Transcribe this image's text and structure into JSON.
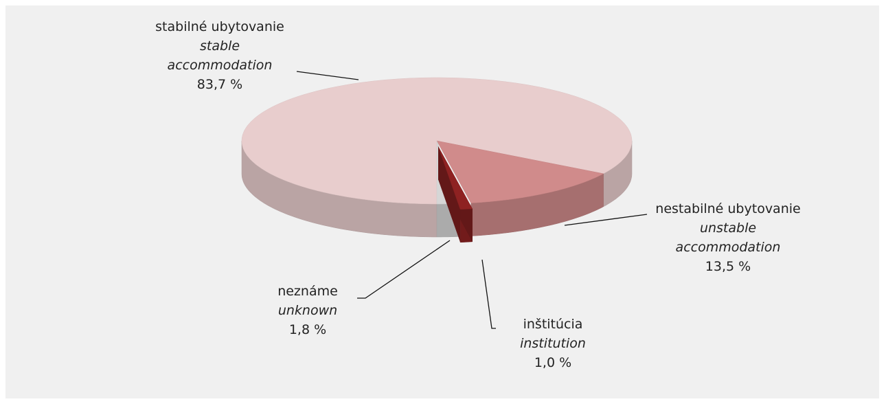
{
  "chart_data": {
    "type": "pie",
    "categories": [
      "stabilné ubytovanie",
      "nestabilné ubytovanie",
      "inštitúcia",
      "neznáme"
    ],
    "categories_en": [
      "stable accommodation",
      "unstable accommodation",
      "institution",
      "unknown"
    ],
    "values": [
      83.7,
      13.5,
      1.0,
      1.8
    ],
    "value_labels": [
      "83,7 %",
      "13,5 %",
      "1,0 %",
      "1,8 %"
    ],
    "colors": [
      "#e8cdcd",
      "#d08b8b",
      "#8e2222",
      "#d6d6d6"
    ]
  }
}
